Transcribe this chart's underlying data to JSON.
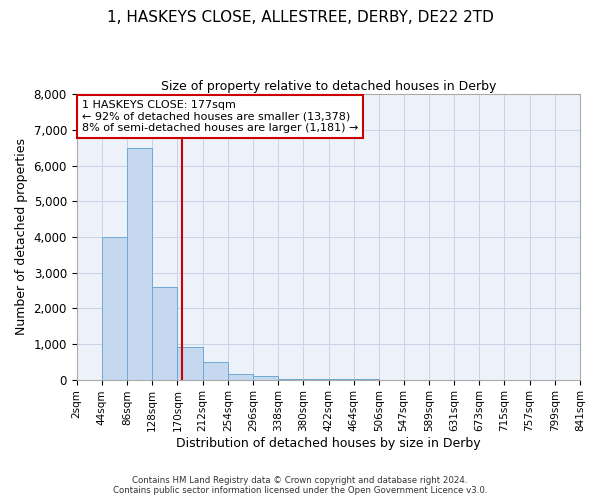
{
  "title": "1, HASKEYS CLOSE, ALLESTREE, DERBY, DE22 2TD",
  "subtitle": "Size of property relative to detached houses in Derby",
  "xlabel": "Distribution of detached houses by size in Derby",
  "ylabel": "Number of detached properties",
  "footer_line1": "Contains HM Land Registry data © Crown copyright and database right 2024.",
  "footer_line2": "Contains public sector information licensed under the Open Government Licence v3.0.",
  "annotation_line1": "1 HASKEYS CLOSE: 177sqm",
  "annotation_line2": "← 92% of detached houses are smaller (13,378)",
  "annotation_line3": "8% of semi-detached houses are larger (1,181) →",
  "property_size": 177,
  "bar_edges": [
    2,
    44,
    86,
    128,
    170,
    212,
    254,
    296,
    338,
    380,
    422,
    464,
    506,
    547,
    589,
    631,
    673,
    715,
    757,
    799,
    841
  ],
  "bar_heights": [
    0,
    4000,
    6500,
    2600,
    900,
    500,
    150,
    100,
    30,
    10,
    5,
    5,
    2,
    2,
    1,
    1,
    0,
    0,
    0,
    0
  ],
  "bar_color": "#c5d8f0",
  "bar_edge_color": "#6aaad4",
  "redline_color": "#cc0000",
  "annotation_box_color": "#cc0000",
  "grid_color": "#c8d4e8",
  "background_color": "#edf2fa",
  "ylim": [
    0,
    8000
  ],
  "yticks": [
    0,
    1000,
    2000,
    3000,
    4000,
    5000,
    6000,
    7000,
    8000
  ]
}
